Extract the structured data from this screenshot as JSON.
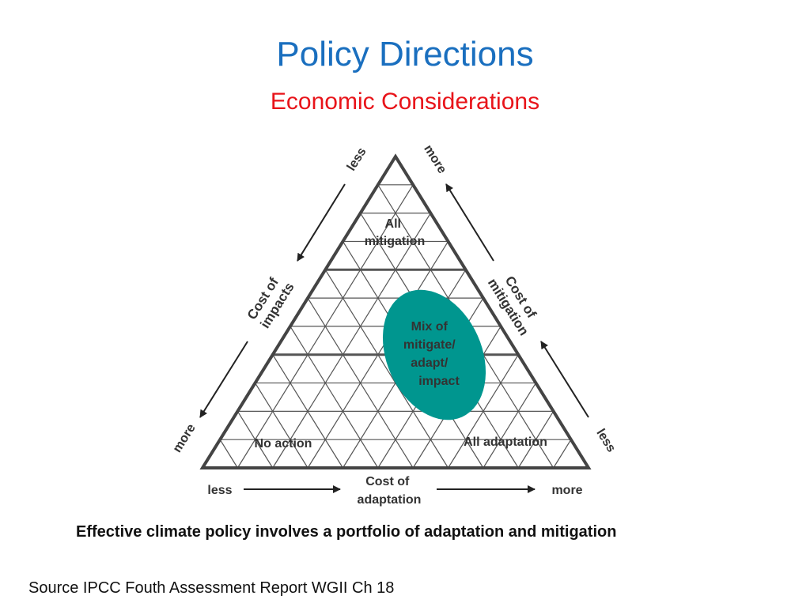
{
  "slide": {
    "title": "Policy Directions",
    "subtitle": "Economic Considerations",
    "caption": "Effective climate policy involves a  portfolio of adaptation and mitigation",
    "source": "Source IPCC Fouth Assessment Report WGII Ch 18"
  },
  "diagram": {
    "regions": {
      "top": [
        "All",
        "mitigation"
      ],
      "center": [
        "Mix of",
        "mitigate/",
        "adapt/",
        "impact"
      ],
      "bottom_left": "No action",
      "bottom_right": "All adaptation"
    },
    "left_axis": {
      "label_line1": "Cost of",
      "label_line2": "impacts",
      "top_end": "less",
      "bottom_end": "more"
    },
    "right_axis": {
      "label_line1": "Cost of",
      "label_line2": "mitigation",
      "top_end": "more",
      "bottom_end": "less"
    },
    "bottom_axis": {
      "label_line1": "Cost of",
      "label_line2": "adaptation",
      "left_end": "less",
      "right_end": "more"
    },
    "colors": {
      "ellipse": "#00968f",
      "triangle": "#444444",
      "grid": "#555555"
    }
  }
}
